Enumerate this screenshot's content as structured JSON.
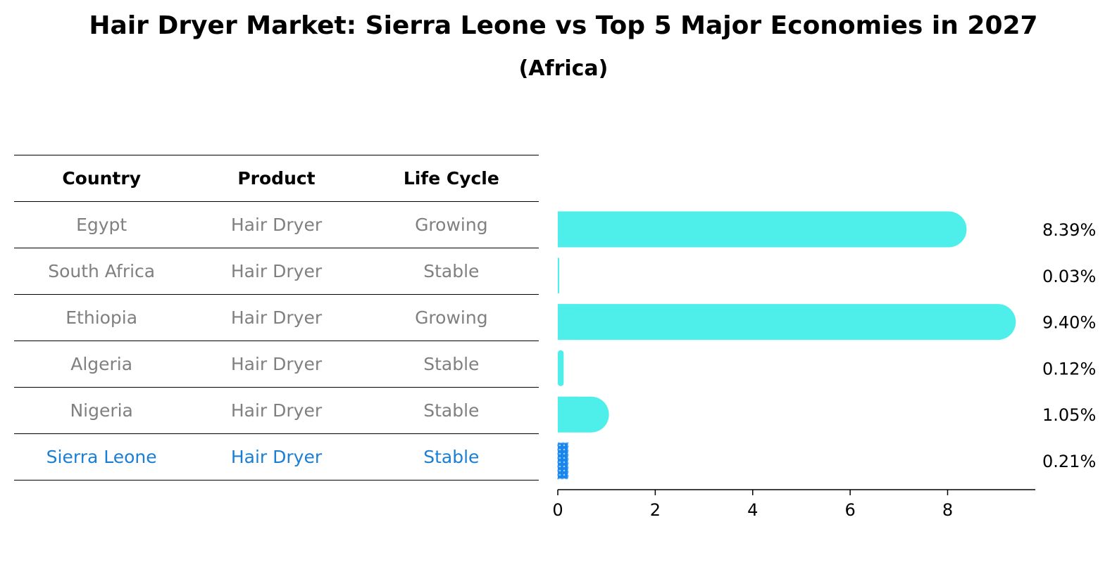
{
  "title": "Hair Dryer Market: Sierra Leone vs Top 5 Major Economies in 2027",
  "subtitle": "(Africa)",
  "table": {
    "headers": [
      "Country",
      "Product",
      "Life Cycle"
    ],
    "rows": [
      [
        "Egypt",
        "Hair Dryer",
        "Growing"
      ],
      [
        "South Africa",
        "Hair Dryer",
        "Stable"
      ],
      [
        "Ethiopia",
        "Hair Dryer",
        "Growing"
      ],
      [
        "Algeria",
        "Hair Dryer",
        "Stable"
      ],
      [
        "Nigeria",
        "Hair Dryer",
        "Stable"
      ],
      [
        "Sierra Leone",
        "Hair Dryer",
        "Stable"
      ]
    ]
  },
  "chart_data": {
    "type": "bar",
    "orientation": "horizontal",
    "categories": [
      "Egypt",
      "South Africa",
      "Ethiopia",
      "Algeria",
      "Nigeria",
      "Sierra Leone"
    ],
    "values": [
      8.39,
      0.03,
      9.4,
      0.12,
      1.05,
      0.21
    ],
    "value_labels": [
      "8.39%",
      "0.03%",
      "9.40%",
      "0.12%",
      "1.05%",
      "0.21%"
    ],
    "highlight": "Sierra Leone",
    "xlim": [
      0,
      9.8
    ],
    "xticks": [
      0,
      2,
      4,
      6,
      8
    ],
    "colors": {
      "bar": "#4eeeea",
      "highlight": "#1a86ec",
      "table_text": "#808080",
      "highlight_text": "#1a7fd4"
    }
  }
}
